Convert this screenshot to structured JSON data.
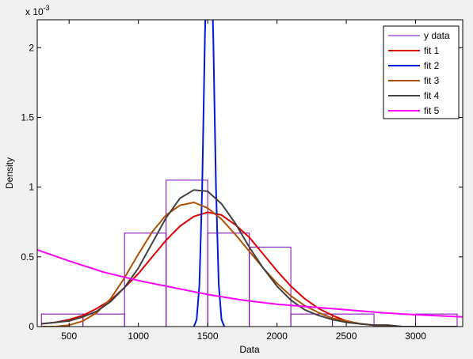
{
  "chart_data": {
    "type": "line",
    "xlabel": "Data",
    "ylabel": "Density",
    "y_exponent_label": "x 10",
    "y_exponent_power": "-3",
    "xlim": [
      270,
      3340
    ],
    "ylim": [
      0,
      2.2
    ],
    "y_scale_note": "values in units of 10^-3",
    "xticks": [
      500,
      1000,
      1500,
      2000,
      2500,
      3000
    ],
    "xtick_labels": [
      "500",
      "1000",
      "1500",
      "2000",
      "2500",
      "3000"
    ],
    "yticks": [
      0,
      0.5,
      1,
      1.5,
      2
    ],
    "ytick_labels": [
      "0",
      "0.5",
      "1",
      "1.5",
      "2"
    ],
    "grid": false,
    "legend_position": "top-right",
    "histogram": {
      "name": "y data",
      "color": "#7b00b4",
      "bin_edges": [
        300,
        600,
        900,
        1200,
        1500,
        1800,
        2100,
        2400,
        2700,
        3000,
        3300
      ],
      "densities": [
        0.09,
        0.09,
        0.67,
        1.05,
        0.67,
        0.57,
        0.09,
        0.09,
        0.0,
        0.09
      ]
    },
    "series": [
      {
        "name": "fit 1",
        "color": "#e00000",
        "x": [
          300,
          400,
          500,
          600,
          700,
          800,
          900,
          1000,
          1100,
          1200,
          1300,
          1400,
          1500,
          1600,
          1700,
          1800,
          1900,
          2000,
          2100,
          2200,
          2300,
          2400,
          2500,
          2600,
          2700,
          2800,
          2900,
          3000,
          3100,
          3200,
          3300
        ],
        "values": [
          0.02,
          0.03,
          0.05,
          0.08,
          0.13,
          0.19,
          0.28,
          0.38,
          0.5,
          0.62,
          0.72,
          0.79,
          0.82,
          0.8,
          0.73,
          0.64,
          0.52,
          0.4,
          0.29,
          0.2,
          0.13,
          0.08,
          0.04,
          0.02,
          0.01,
          0.01,
          0.0,
          0.0,
          0.0,
          0.0,
          0.0
        ]
      },
      {
        "name": "fit 2",
        "color": "#0018e0",
        "x": [
          1400,
          1420,
          1440,
          1460,
          1480,
          1500,
          1520,
          1540,
          1560,
          1580,
          1600,
          1620
        ],
        "values": [
          0.0,
          0.05,
          0.3,
          1.0,
          2.1,
          2.8,
          2.8,
          2.1,
          1.0,
          0.3,
          0.05,
          0.0
        ]
      },
      {
        "name": "fit 3",
        "color": "#b05000",
        "x": [
          300,
          400,
          500,
          600,
          700,
          800,
          900,
          1000,
          1100,
          1200,
          1300,
          1400,
          1500,
          1600,
          1700,
          1800,
          1900,
          2000,
          2100,
          2200,
          2300,
          2400,
          2500,
          2600,
          2700,
          2800,
          2900,
          3000,
          3100,
          3200,
          3300
        ],
        "values": [
          0.0,
          0.0,
          0.01,
          0.04,
          0.1,
          0.2,
          0.35,
          0.52,
          0.68,
          0.8,
          0.87,
          0.89,
          0.85,
          0.77,
          0.66,
          0.54,
          0.42,
          0.31,
          0.22,
          0.15,
          0.1,
          0.06,
          0.04,
          0.02,
          0.01,
          0.01,
          0.0,
          0.0,
          0.0,
          0.0,
          0.0
        ]
      },
      {
        "name": "fit 4",
        "color": "#404040",
        "x": [
          300,
          400,
          500,
          600,
          700,
          800,
          900,
          1000,
          1100,
          1200,
          1300,
          1400,
          1500,
          1600,
          1700,
          1800,
          1900,
          2000,
          2100,
          2200,
          2300,
          2400,
          2500,
          2600,
          2700,
          2800,
          2900,
          3000,
          3100,
          3200,
          3300
        ],
        "values": [
          0.02,
          0.03,
          0.04,
          0.07,
          0.11,
          0.18,
          0.28,
          0.42,
          0.6,
          0.78,
          0.92,
          0.98,
          0.97,
          0.88,
          0.74,
          0.57,
          0.42,
          0.29,
          0.19,
          0.12,
          0.08,
          0.05,
          0.03,
          0.02,
          0.01,
          0.01,
          0.0,
          0.0,
          0.0,
          0.0,
          0.0
        ]
      },
      {
        "name": "fit 5",
        "color": "#ff00ff",
        "x": [
          270,
          500,
          750,
          1000,
          1250,
          1500,
          1750,
          2000,
          2250,
          2500,
          2750,
          3000,
          3340
        ],
        "values": [
          0.55,
          0.47,
          0.39,
          0.33,
          0.28,
          0.23,
          0.19,
          0.16,
          0.14,
          0.12,
          0.1,
          0.085,
          0.07
        ]
      }
    ]
  }
}
